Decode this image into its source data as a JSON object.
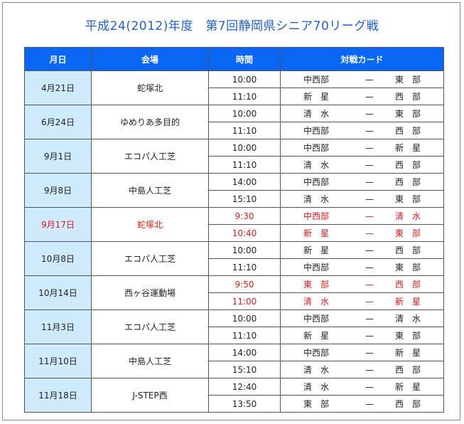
{
  "title": "平成24(2012)年度　第7回静岡県シニア70リーグ戦",
  "headers": {
    "date": "月日",
    "venue": "会場",
    "time": "時間",
    "card": "対戦カード"
  },
  "dash": "—",
  "rows": [
    {
      "date": "4月21日",
      "venue": "蛇塚北",
      "highlight": false,
      "games": [
        {
          "time": "10:00",
          "home": "中西部",
          "away": "東　部",
          "red": false
        },
        {
          "time": "11:10",
          "home": "新　星",
          "away": "西　部",
          "red": false
        }
      ]
    },
    {
      "date": "6月24日",
      "venue": "ゆめりあ多目的",
      "highlight": false,
      "games": [
        {
          "time": "10:00",
          "home": "清　水",
          "away": "東　部",
          "red": false
        },
        {
          "time": "11:10",
          "home": "中西部",
          "away": "西　部",
          "red": false
        }
      ]
    },
    {
      "date": "9月1日",
      "venue": "エコパ人工芝",
      "highlight": false,
      "games": [
        {
          "time": "10:00",
          "home": "中西部",
          "away": "新　星",
          "red": false
        },
        {
          "time": "11:10",
          "home": "清　水",
          "away": "西　部",
          "red": false
        }
      ]
    },
    {
      "date": "9月8日",
      "venue": "中島人工芝",
      "highlight": false,
      "games": [
        {
          "time": "14:00",
          "home": "中西部",
          "away": "西　部",
          "red": false
        },
        {
          "time": "15:10",
          "home": "清　水",
          "away": "東　部",
          "red": false
        }
      ]
    },
    {
      "date": "9月17日",
      "venue": "蛇塚北",
      "highlight": true,
      "games": [
        {
          "time": "9:30",
          "home": "中西部",
          "away": "清　水",
          "red": true
        },
        {
          "time": "10:40",
          "home": "新　星",
          "away": "東　部",
          "red": true
        }
      ]
    },
    {
      "date": "10月8日",
      "venue": "エコパ人工芝",
      "highlight": false,
      "games": [
        {
          "time": "10:00",
          "home": "新　星",
          "away": "西　部",
          "red": false
        },
        {
          "time": "11:10",
          "home": "中西部",
          "away": "東　部",
          "red": false
        }
      ]
    },
    {
      "date": "10月14日",
      "venue": "西ヶ谷運動場",
      "highlight": false,
      "games": [
        {
          "time": "9:50",
          "home": "東　部",
          "away": "西　部",
          "red": true
        },
        {
          "time": "11:00",
          "home": "清　水",
          "away": "新　星",
          "red": true
        }
      ]
    },
    {
      "date": "11月3日",
      "venue": "エコパ人工芝",
      "highlight": false,
      "games": [
        {
          "time": "10:00",
          "home": "中西部",
          "away": "清　水",
          "red": false
        },
        {
          "time": "11:10",
          "home": "新　星",
          "away": "東　部",
          "red": false
        }
      ]
    },
    {
      "date": "11月10日",
      "venue": "中島人工芝",
      "highlight": false,
      "games": [
        {
          "time": "14:00",
          "home": "中西部",
          "away": "新　星",
          "red": false
        },
        {
          "time": "15:10",
          "home": "清　水",
          "away": "西　部",
          "red": false
        }
      ]
    },
    {
      "date": "11月18日",
      "venue": "J-STEP西",
      "highlight": false,
      "games": [
        {
          "time": "12:40",
          "home": "清　水",
          "away": "新　星",
          "red": false
        },
        {
          "time": "13:50",
          "home": "東　部",
          "away": "西　部",
          "red": false
        }
      ]
    }
  ]
}
